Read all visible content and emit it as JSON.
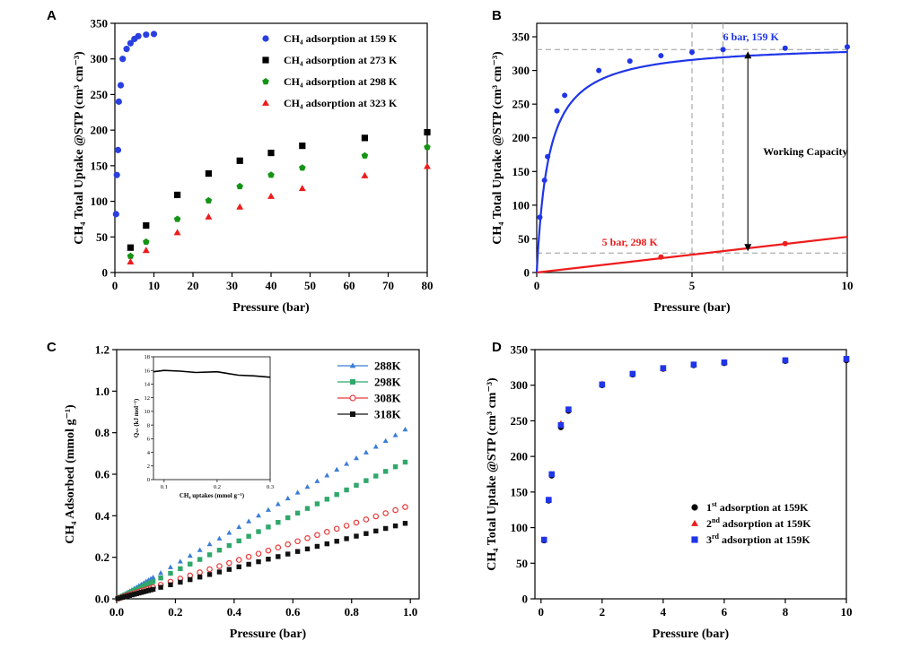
{
  "chart_data": [
    {
      "panel": "A",
      "type": "scatter",
      "xlabel": "Pressure (bar)",
      "ylabel": "CH₄ Total Uptake @STP (cm³ cm⁻³)",
      "xlim": [
        0,
        80
      ],
      "ylim": [
        0,
        350
      ],
      "xticks": [
        0,
        10,
        20,
        30,
        40,
        50,
        60,
        70,
        80
      ],
      "yticks": [
        0,
        50,
        100,
        150,
        200,
        250,
        300,
        350
      ],
      "legend_position": "top-right",
      "series": [
        {
          "name": "CH₄ adsorption at 159 K",
          "marker": "circle",
          "color": "#2a3fe0",
          "x": [
            0.3,
            0.5,
            0.8,
            1.0,
            1.5,
            2.0,
            3.0,
            4.0,
            5.0,
            6.0,
            8.0,
            10.0
          ],
          "y": [
            82,
            137,
            172,
            240,
            263,
            300,
            314,
            322,
            328,
            332,
            334,
            335
          ]
        },
        {
          "name": "CH₄ adsorption at 273 K",
          "marker": "square",
          "color": "#000000",
          "x": [
            4,
            8,
            16,
            24,
            32,
            40,
            48,
            64,
            80
          ],
          "y": [
            35,
            66,
            109,
            139,
            157,
            168,
            178,
            189,
            197
          ]
        },
        {
          "name": "CH₄ adsorption at 298 K",
          "marker": "pentagon",
          "color": "#149414",
          "x": [
            4,
            8,
            16,
            24,
            32,
            40,
            48,
            64,
            80
          ],
          "y": [
            23,
            43,
            75,
            101,
            121,
            137,
            147,
            164,
            176
          ]
        },
        {
          "name": "CH₄ adsorption at 323 K",
          "marker": "triangle",
          "color": "#ee1c1c",
          "x": [
            4,
            8,
            16,
            24,
            32,
            40,
            48,
            64,
            80
          ],
          "y": [
            15,
            31,
            56,
            78,
            92,
            107,
            118,
            136,
            149
          ]
        }
      ]
    },
    {
      "panel": "B",
      "type": "line",
      "xlabel": "Pressure (bar)",
      "ylabel": "CH₄ Total Uptake @STP (cm³ cm⁻³)",
      "xlim": [
        0,
        10
      ],
      "ylim": [
        0,
        370
      ],
      "xticks": [
        0,
        5,
        10
      ],
      "yticks": [
        0,
        50,
        100,
        150,
        200,
        250,
        300,
        350
      ],
      "reference_x": [
        5,
        6
      ],
      "reference_y": [
        29,
        331
      ],
      "series": [
        {
          "color": "#1f35e8",
          "points_x": [
            0.1,
            0.25,
            0.35,
            0.65,
            0.9,
            2.0,
            3.0,
            4.0,
            5.0,
            6.0,
            8.0,
            10.0
          ],
          "points_y": [
            82,
            137,
            172,
            240,
            263,
            300,
            314,
            322,
            327,
            331,
            333,
            335
          ]
        },
        {
          "color": "#ee1c1c",
          "points_x": [
            4.0,
            8.0
          ],
          "points_y": [
            23,
            43
          ]
        }
      ],
      "annotations": [
        {
          "text": "6 bar, 159 K",
          "color": "#1f35e8",
          "x": 6.0,
          "y": 345
        },
        {
          "text": "5 bar, 298 K",
          "color": "#ee1c1c",
          "x": 2.1,
          "y": 40
        },
        {
          "text": "Working Capacity",
          "color": "#000000",
          "x": 7.0,
          "y": 180
        }
      ]
    },
    {
      "panel": "C",
      "type": "scatter",
      "xlabel": "Pressure (bar)",
      "ylabel": "CH₄ Adsorbed (mmol g⁻¹)",
      "xlim": [
        0,
        1.03
      ],
      "ylim": [
        0,
        1.2
      ],
      "xticks": [
        0.0,
        0.2,
        0.4,
        0.6,
        0.8,
        1.0
      ],
      "yticks": [
        0.0,
        0.2,
        0.4,
        0.6,
        0.8,
        1.0,
        1.2
      ],
      "legend_position": "top-right",
      "series": [
        {
          "name": "288K",
          "marker": "triangle",
          "color": "#3b7dd8",
          "slope": 0.83
        },
        {
          "name": "298K",
          "marker": "square",
          "color": "#2fa86a",
          "slope": 0.67
        },
        {
          "name": "308K",
          "marker": "circle-open",
          "color": "#e83a3a",
          "slope": 0.45
        },
        {
          "name": "318K",
          "marker": "square",
          "color": "#111111",
          "slope": 0.37
        }
      ],
      "inset": {
        "type": "line",
        "xlabel": "CH₄ uptakes (mmol g⁻¹)",
        "ylabel": "Qₛₜ (kJ mol⁻¹)",
        "xlim": [
          0.08,
          0.3
        ],
        "ylim": [
          0,
          18
        ],
        "xticks": [
          0.1,
          0.2,
          0.3
        ],
        "yticks": [
          0,
          2,
          4,
          6,
          8,
          10,
          12,
          14,
          16,
          18
        ],
        "x": [
          0.08,
          0.1,
          0.13,
          0.16,
          0.2,
          0.24,
          0.27,
          0.3
        ],
        "y": [
          15.8,
          16.0,
          15.9,
          15.7,
          15.8,
          15.3,
          15.2,
          15.0
        ]
      }
    },
    {
      "panel": "D",
      "type": "scatter",
      "xlabel": "Pressure (bar)",
      "ylabel": "CH₄ Total Uptake @STP (cm³ cm⁻³)",
      "xlim": [
        -0.2,
        10
      ],
      "ylim": [
        0,
        350
      ],
      "xticks": [
        0,
        2,
        4,
        6,
        8,
        10
      ],
      "yticks": [
        0,
        50,
        100,
        150,
        200,
        250,
        300,
        350
      ],
      "legend_position": "bottom-right",
      "x": [
        0.1,
        0.25,
        0.35,
        0.65,
        0.9,
        2.0,
        3.0,
        4.0,
        5.0,
        6.0,
        8.0,
        10.0
      ],
      "series": [
        {
          "name": "1st adsorption at 159K",
          "label_base": "1",
          "label_sup": "st",
          "label_rest": " adsorption at 159K",
          "marker": "circle",
          "color": "#000000",
          "y": [
            82,
            138,
            173,
            241,
            264,
            300,
            315,
            323,
            328,
            331,
            334,
            335
          ]
        },
        {
          "name": "2nd adsorption at 159K",
          "label_base": "2",
          "label_sup": "nd",
          "label_rest": " adsorption at 159K",
          "marker": "triangle",
          "color": "#ee1c1c",
          "y": [
            83,
            139,
            175,
            246,
            265,
            302,
            316,
            323,
            329,
            332,
            335,
            336
          ]
        },
        {
          "name": "3rd adsorption at 159K",
          "label_base": "3",
          "label_sup": "rd",
          "label_rest": " adsorption at 159K",
          "marker": "square",
          "color": "#1f35e8",
          "y": [
            83,
            139,
            175,
            244,
            266,
            301,
            316,
            324,
            329,
            332,
            335,
            337
          ]
        }
      ]
    }
  ],
  "panels": {
    "a": "A",
    "b": "B",
    "c": "C",
    "d": "D"
  }
}
